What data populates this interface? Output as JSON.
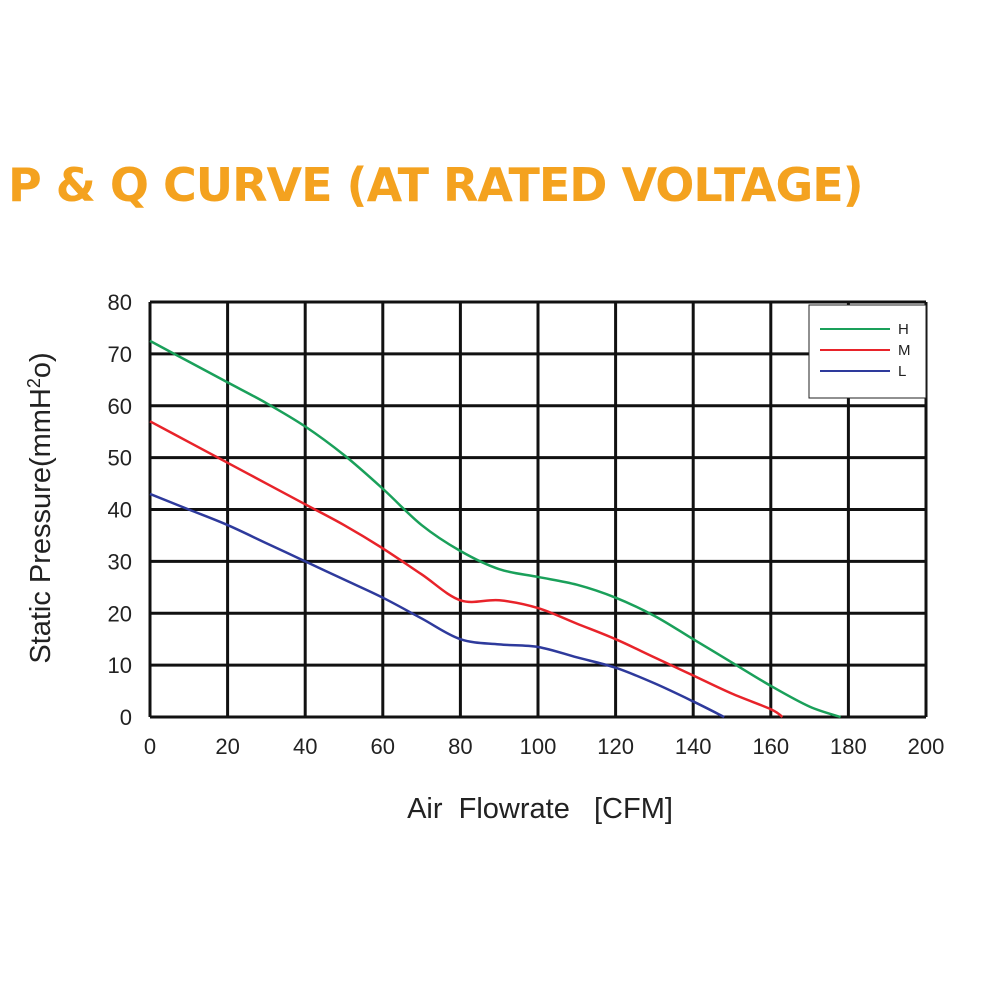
{
  "chart_data": {
    "type": "line",
    "title": "P & Q CURVE (AT RATED VOLTAGE)",
    "xlabel": "Air  Flowrate   [CFM]",
    "ylabel_main": "Static Pressure(mmH",
    "ylabel_sup": "2",
    "ylabel_end": "o)",
    "xlim": [
      0,
      200
    ],
    "ylim": [
      0,
      80
    ],
    "xticks": [
      "0",
      "20",
      "40",
      "60",
      "80",
      "100",
      "120",
      "140",
      "160",
      "180",
      "200"
    ],
    "yticks": [
      "0",
      "10",
      "20",
      "30",
      "40",
      "50",
      "60",
      "70",
      "80"
    ],
    "grid": true,
    "legend_position": "top-right",
    "series": [
      {
        "name": "H",
        "color": "#1aa05a",
        "x": [
          0,
          10,
          20,
          30,
          40,
          50,
          60,
          70,
          80,
          90,
          100,
          110,
          120,
          130,
          140,
          150,
          160,
          170,
          178
        ],
        "y": [
          72.5,
          68.5,
          64.5,
          60.5,
          56,
          50.5,
          44,
          37,
          32,
          28.5,
          27,
          25.5,
          23,
          19.5,
          15,
          10.5,
          6,
          2,
          0
        ]
      },
      {
        "name": "M",
        "color": "#e8232a",
        "x": [
          0,
          10,
          20,
          30,
          40,
          50,
          60,
          70,
          80,
          90,
          100,
          110,
          120,
          130,
          140,
          150,
          160,
          163
        ],
        "y": [
          57,
          53,
          49,
          45,
          41,
          37,
          32.5,
          27.5,
          22.5,
          22.5,
          21,
          18,
          15,
          11.5,
          8,
          4.5,
          1.5,
          0
        ]
      },
      {
        "name": "L",
        "color": "#2e3a9c",
        "x": [
          0,
          10,
          20,
          30,
          40,
          50,
          60,
          70,
          80,
          90,
          100,
          110,
          120,
          130,
          140,
          148
        ],
        "y": [
          43,
          40,
          37,
          33.5,
          30,
          26.5,
          23,
          19,
          15,
          14,
          13.5,
          11.5,
          9.5,
          6.5,
          3,
          0
        ]
      }
    ]
  },
  "colors": {
    "title": "#f4a21f",
    "grid": "#111111",
    "text": "#222222"
  }
}
